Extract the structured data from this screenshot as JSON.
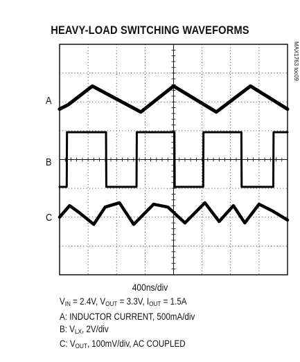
{
  "chart_data": {
    "type": "line",
    "title": "HEAVY-LOAD SWITCHING WAVEFORMS",
    "grid": true,
    "x_divisions": 8,
    "y_divisions": 8,
    "xlabel": "400ns/div",
    "side_label": "MAX1763 toc09",
    "series": [
      {
        "name": "A",
        "label": "INDUCTOR CURRENT",
        "scale": "500mA/div",
        "x": [
          0,
          0.3,
          1.15,
          2.85,
          4.0,
          5.5,
          6.7,
          8.0
        ],
        "y": [
          1.75,
          1.9,
          2.55,
          1.65,
          2.55,
          1.65,
          2.55,
          1.75
        ]
      },
      {
        "name": "B",
        "label": "V_LX",
        "scale": "2V/div",
        "x": [
          0,
          0.25,
          0.26,
          1.63,
          1.64,
          2.7,
          2.71,
          4.03,
          4.04,
          5.04,
          5.05,
          6.38,
          6.39,
          7.5,
          7.51,
          8.0
        ],
        "y": [
          -0.95,
          -0.95,
          0.95,
          0.95,
          -0.95,
          -0.95,
          0.95,
          0.95,
          -0.95,
          -0.95,
          0.95,
          0.95,
          -0.95,
          -0.95,
          0.95,
          0.95
        ]
      },
      {
        "name": "C",
        "label": "V_OUT",
        "scale": "100mV/div, AC COUPLED",
        "x": [
          0,
          0.35,
          0.7,
          1.2,
          1.6,
          2.1,
          2.6,
          3.3,
          3.8,
          4.4,
          5.1,
          5.6,
          6.1,
          6.5,
          7.0,
          7.5,
          8.0
        ],
        "y": [
          -2.0,
          -1.6,
          -1.85,
          -2.25,
          -1.65,
          -1.5,
          -2.25,
          -1.55,
          -1.65,
          -2.2,
          -1.5,
          -2.15,
          -1.6,
          -2.2,
          -1.55,
          -1.8,
          -2.1
        ]
      }
    ]
  },
  "channels": {
    "a": "A",
    "b": "B",
    "c": "C"
  },
  "conditions": {
    "vin_sym": "V",
    "vin_sub": "IN",
    "vin_val": " = 2.4V, ",
    "vout_sym": "V",
    "vout_sub": "OUT",
    "vout_val": " = 3.3V, ",
    "iout_sym": "I",
    "iout_sub": "OUT",
    "iout_val": " = 1.5A"
  },
  "legend_lines": {
    "a": "A: INDUCTOR CURRENT, 500mA/div",
    "b_prefix": "B: V",
    "b_sub": "LX",
    "b_suffix": ", 2V/div",
    "c_prefix": "C: V",
    "c_sub": "OUT",
    "c_suffix": ", 100mV/div, AC COUPLED"
  }
}
